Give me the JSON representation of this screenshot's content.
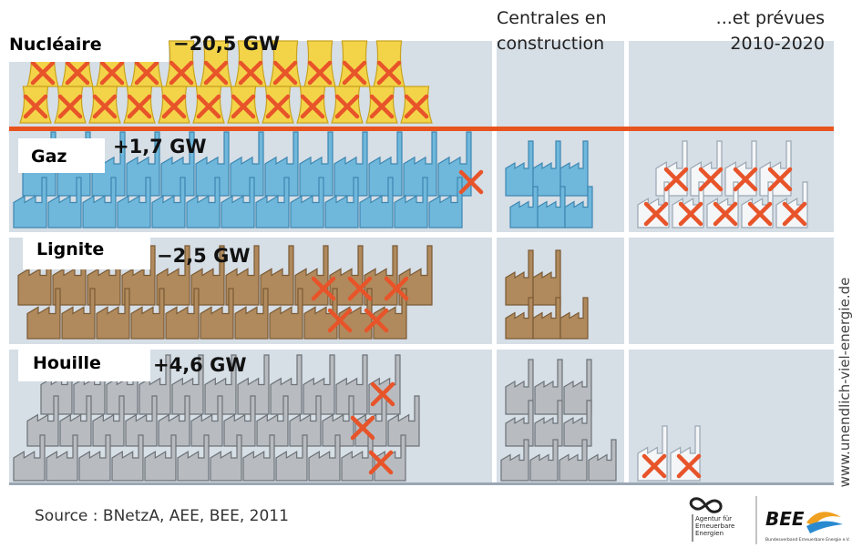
{
  "columns": [
    {
      "lines": [
        "Centrales en",
        "construction"
      ]
    },
    {
      "lines": [
        "...et prévues",
        "2010-2020"
      ]
    }
  ],
  "rows": [
    {
      "label": "Nucléaire",
      "change": "−20,5 GW"
    },
    {
      "label": "Gaz",
      "change": "+1,7 GW"
    },
    {
      "label": "Lignite",
      "change": "−2,5 GW"
    },
    {
      "label": "Houille",
      "change": "+4,6 GW"
    }
  ],
  "source": "Source : BNetzA, AEE, BEE, 2011",
  "credit": "www.unendlich-viel-energie.de",
  "logos": {
    "aee": [
      "Agentur für",
      "Erneuerbare",
      "Energien"
    ],
    "bee": "BEE",
    "bee_sub": "Bundesverband Erneuerbare Energie e.V."
  }
}
